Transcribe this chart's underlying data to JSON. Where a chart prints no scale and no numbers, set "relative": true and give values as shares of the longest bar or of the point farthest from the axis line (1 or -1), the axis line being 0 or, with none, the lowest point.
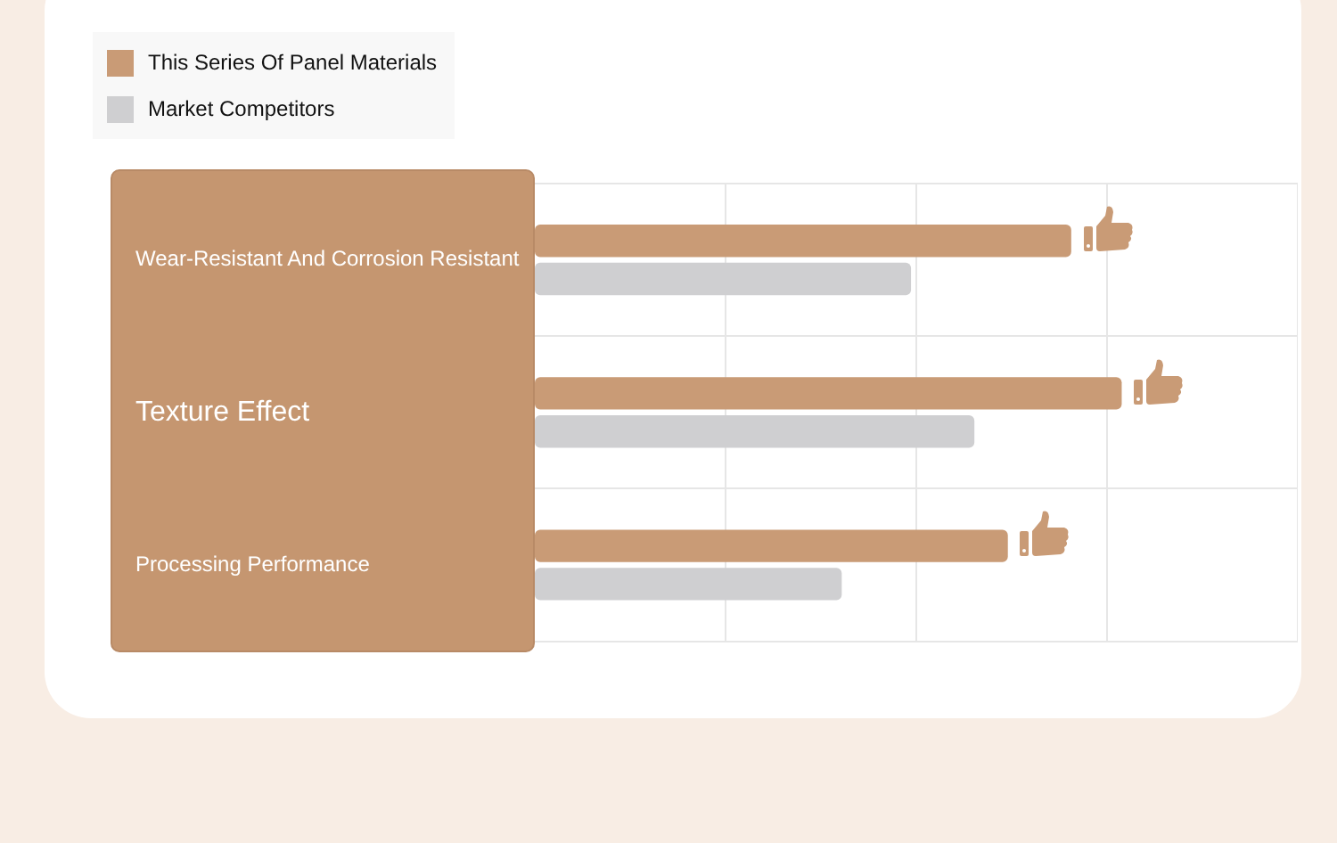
{
  "chart_data": {
    "type": "bar",
    "orientation": "horizontal",
    "relative": true,
    "categories": [
      "Wear-Resistant And Corrosion Resistant",
      "Texture Effect",
      "Processing Performance"
    ],
    "series": [
      {
        "name": "This Series Of Panel Materials",
        "color": "#c99b76",
        "values": [
          0.914,
          1,
          0.806
        ]
      },
      {
        "name": "Market Competitors",
        "color": "#cfcfd1",
        "values": [
          0.641,
          0.749,
          0.523
        ]
      }
    ],
    "grid": true,
    "legend": "top left"
  }
}
